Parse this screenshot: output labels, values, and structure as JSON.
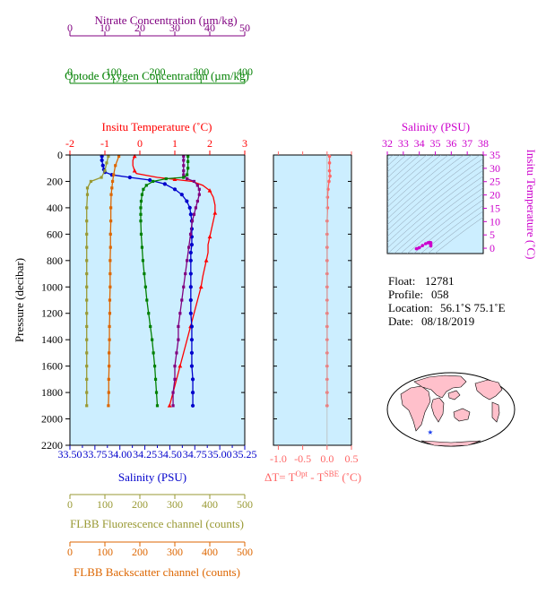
{
  "colors": {
    "nitrate": "#800080",
    "oxygen": "#008000",
    "temperature": "#ff0000",
    "salinity": "#0000cc",
    "fluorescence": "#999933",
    "backscatter": "#dd6600",
    "delta": "#ff6666",
    "magenta": "#cc00cc",
    "panel_bg": "#cceeff",
    "land": "#ffc0cb",
    "marker": "#2244ee"
  },
  "chart_data": [
    {
      "type": "line",
      "ylabel": "Pressure (decibar)",
      "ylim": [
        2200,
        0
      ],
      "yticks": [
        "0",
        "200",
        "400",
        "600",
        "800",
        "1000",
        "1200",
        "1400",
        "1600",
        "1800",
        "2000",
        "2200"
      ],
      "axes": {
        "nitrate": {
          "label": "Nitrate Concentration (µm/kg)",
          "range": [
            0,
            50
          ],
          "ticks": [
            "0",
            "10",
            "20",
            "30",
            "40",
            "50"
          ]
        },
        "oxygen": {
          "label": "Optode Oxygen Concentration (µm/kg)",
          "range": [
            0,
            400
          ],
          "ticks": [
            "0",
            "100",
            "200",
            "300",
            "400"
          ]
        },
        "temperature": {
          "label": "Insitu Temperature (˚C)",
          "range": [
            -2,
            3
          ],
          "ticks": [
            "-2",
            "-1",
            "0",
            "1",
            "2",
            "3"
          ]
        },
        "salinity": {
          "label": "Salinity (PSU)",
          "range": [
            33.5,
            35.25
          ],
          "ticks": [
            "33.50",
            "33.75",
            "34.00",
            "34.25",
            "34.50",
            "34.75",
            "35.00",
            "35.25"
          ]
        },
        "fluorescence": {
          "label": "FLBB Fluorescence channel (counts)",
          "range": [
            0,
            500
          ],
          "ticks": [
            "0",
            "100",
            "200",
            "300",
            "400",
            "500"
          ]
        },
        "backscatter": {
          "label": "FLBB Backscatter channel (counts)",
          "range": [
            0,
            500
          ],
          "ticks": [
            "0",
            "100",
            "200",
            "300",
            "400",
            "500"
          ]
        }
      },
      "series": [
        {
          "key": "temperature",
          "points": [
            [
              -0.15,
              10
            ],
            [
              -0.2,
              40
            ],
            [
              -0.2,
              80
            ],
            [
              -0.15,
              120
            ],
            [
              -0.1,
              140
            ],
            [
              0.5,
              170
            ],
            [
              1.0,
              185
            ],
            [
              1.5,
              200
            ],
            [
              1.8,
              230
            ],
            [
              2.0,
              270
            ],
            [
              2.1,
              320
            ],
            [
              2.15,
              380
            ],
            [
              2.15,
              440
            ],
            [
              2.1,
              500
            ],
            [
              2.05,
              560
            ],
            [
              2.0,
              620
            ],
            [
              1.95,
              680
            ],
            [
              1.95,
              740
            ],
            [
              1.9,
              800
            ],
            [
              1.85,
              860
            ],
            [
              1.8,
              920
            ],
            [
              1.75,
              1000
            ],
            [
              1.65,
              1100
            ],
            [
              1.55,
              1200
            ],
            [
              1.45,
              1300
            ],
            [
              1.35,
              1400
            ],
            [
              1.25,
              1500
            ],
            [
              1.15,
              1600
            ],
            [
              1.05,
              1700
            ],
            [
              0.95,
              1800
            ],
            [
              0.85,
              1900
            ]
          ]
        },
        {
          "key": "salinity",
          "points": [
            [
              33.82,
              10
            ],
            [
              33.82,
              40
            ],
            [
              33.83,
              80
            ],
            [
              33.84,
              110
            ],
            [
              33.85,
              130
            ],
            [
              33.92,
              150
            ],
            [
              34.1,
              170
            ],
            [
              34.3,
              190
            ],
            [
              34.45,
              220
            ],
            [
              34.55,
              260
            ],
            [
              34.62,
              300
            ],
            [
              34.67,
              350
            ],
            [
              34.7,
              400
            ],
            [
              34.71,
              450
            ],
            [
              34.72,
              500
            ],
            [
              34.72,
              560
            ],
            [
              34.72,
              620
            ],
            [
              34.72,
              680
            ],
            [
              34.71,
              740
            ],
            [
              34.71,
              800
            ],
            [
              34.71,
              900
            ],
            [
              34.71,
              1000
            ],
            [
              34.71,
              1100
            ],
            [
              34.71,
              1200
            ],
            [
              34.72,
              1300
            ],
            [
              34.72,
              1400
            ],
            [
              34.72,
              1500
            ],
            [
              34.72,
              1600
            ],
            [
              34.73,
              1700
            ],
            [
              34.73,
              1800
            ],
            [
              34.73,
              1900
            ]
          ]
        },
        {
          "key": "nitrate",
          "points": [
            [
              32.5,
              10
            ],
            [
              32.5,
              40
            ],
            [
              32.5,
              80
            ],
            [
              32.5,
              120
            ],
            [
              32.5,
              150
            ],
            [
              33.5,
              180
            ],
            [
              35.5,
              200
            ],
            [
              36.5,
              230
            ],
            [
              37,
              260
            ],
            [
              37,
              300
            ],
            [
              36.5,
              350
            ],
            [
              36,
              400
            ],
            [
              35.5,
              450
            ],
            [
              35,
              500
            ],
            [
              34.5,
              600
            ],
            [
              34,
              700
            ],
            [
              33.5,
              800
            ],
            [
              33,
              900
            ],
            [
              32.5,
              1000
            ],
            [
              32,
              1100
            ],
            [
              31.5,
              1200
            ],
            [
              31,
              1300
            ],
            [
              31,
              1400
            ],
            [
              30.5,
              1500
            ],
            [
              30,
              1600
            ],
            [
              30,
              1700
            ],
            [
              29.5,
              1800
            ],
            [
              29.5,
              1900
            ]
          ]
        },
        {
          "key": "oxygen",
          "points": [
            [
              270,
              10
            ],
            [
              270,
              50
            ],
            [
              270,
              100
            ],
            [
              268,
              150
            ],
            [
              260,
              170
            ],
            [
              220,
              180
            ],
            [
              190,
              200
            ],
            [
              175,
              230
            ],
            [
              168,
              260
            ],
            [
              165,
              300
            ],
            [
              163,
              350
            ],
            [
              162,
              400
            ],
            [
              162,
              450
            ],
            [
              162,
              500
            ],
            [
              163,
              600
            ],
            [
              165,
              700
            ],
            [
              167,
              800
            ],
            [
              170,
              900
            ],
            [
              173,
              1000
            ],
            [
              176,
              1100
            ],
            [
              180,
              1200
            ],
            [
              184,
              1300
            ],
            [
              188,
              1400
            ],
            [
              191,
              1500
            ],
            [
              194,
              1600
            ],
            [
              196,
              1700
            ],
            [
              198,
              1800
            ],
            [
              200,
              1900
            ]
          ]
        },
        {
          "key": "fluorescence",
          "points": [
            [
              110,
              10
            ],
            [
              105,
              60
            ],
            [
              100,
              120
            ],
            [
              90,
              170
            ],
            [
              60,
              200
            ],
            [
              50,
              250
            ],
            [
              50,
              300
            ],
            [
              48,
              400
            ],
            [
              48,
              500
            ],
            [
              48,
              600
            ],
            [
              48,
              700
            ],
            [
              48,
              800
            ],
            [
              48,
              900
            ],
            [
              48,
              1000
            ],
            [
              48,
              1100
            ],
            [
              48,
              1200
            ],
            [
              48,
              1300
            ],
            [
              48,
              1400
            ],
            [
              48,
              1500
            ],
            [
              48,
              1600
            ],
            [
              48,
              1700
            ],
            [
              48,
              1800
            ],
            [
              48,
              1900
            ]
          ]
        },
        {
          "key": "backscatter",
          "points": [
            [
              140,
              10
            ],
            [
              130,
              80
            ],
            [
              125,
              150
            ],
            [
              122,
              200
            ],
            [
              120,
              250
            ],
            [
              118,
              300
            ],
            [
              117,
              400
            ],
            [
              117,
              500
            ],
            [
              116,
              600
            ],
            [
              116,
              700
            ],
            [
              115,
              800
            ],
            [
              115,
              900
            ],
            [
              115,
              1000
            ],
            [
              114,
              1100
            ],
            [
              114,
              1200
            ],
            [
              113,
              1300
            ],
            [
              113,
              1400
            ],
            [
              112,
              1500
            ],
            [
              112,
              1600
            ],
            [
              111,
              1700
            ],
            [
              111,
              1800
            ],
            [
              110,
              1900
            ]
          ]
        }
      ]
    },
    {
      "type": "line",
      "xlabel": "ΔT= T",
      "xlabel_sup1": "Opt",
      "xlabel_mid": " - T",
      "xlabel_sup2": "SBE",
      "xlabel_tail": " (˚C)",
      "xlim": [
        -1.1,
        0.5
      ],
      "xticks": [
        "-1.0",
        "-0.5",
        "0.0",
        "0.5"
      ],
      "ylim": [
        2200,
        0
      ],
      "points": [
        [
          0.05,
          10
        ],
        [
          0.05,
          60
        ],
        [
          0.05,
          120
        ],
        [
          0.06,
          160
        ],
        [
          0.04,
          200
        ],
        [
          0.02,
          260
        ],
        [
          0.01,
          320
        ],
        [
          0.01,
          400
        ],
        [
          0.0,
          500
        ],
        [
          0.0,
          600
        ],
        [
          0.0,
          700
        ],
        [
          0.0,
          800
        ],
        [
          0.0,
          900
        ],
        [
          0.0,
          1000
        ],
        [
          0.0,
          1100
        ],
        [
          0.0,
          1200
        ],
        [
          0.0,
          1300
        ],
        [
          0.0,
          1400
        ],
        [
          0.0,
          1500
        ],
        [
          0.0,
          1600
        ],
        [
          0.0,
          1700
        ],
        [
          0.0,
          1800
        ],
        [
          0.0,
          1900
        ]
      ]
    },
    {
      "type": "scatter",
      "xlabel": "Salinity (PSU)",
      "ylabel": "Insitu Temperature (˚C)",
      "xlim": [
        32,
        38
      ],
      "ylim": [
        -2,
        35
      ],
      "xticks": [
        "32",
        "33",
        "34",
        "35",
        "36",
        "37",
        "38"
      ],
      "yticks": [
        "0",
        "5",
        "10",
        "15",
        "20",
        "25",
        "30",
        "35"
      ],
      "points": [
        [
          34.72,
          0.85
        ],
        [
          34.72,
          1.2
        ],
        [
          34.71,
          1.6
        ],
        [
          34.71,
          1.9
        ],
        [
          34.72,
          2.1
        ],
        [
          34.65,
          2.15
        ],
        [
          34.55,
          2.05
        ],
        [
          34.4,
          1.7
        ],
        [
          34.2,
          1.0
        ],
        [
          34.0,
          0.2
        ],
        [
          33.85,
          -0.15
        ],
        [
          33.82,
          -0.2
        ]
      ]
    }
  ],
  "info": {
    "float_label": "Float:",
    "float_value": "12781",
    "profile_label": "Profile:",
    "profile_value": "058",
    "location_label": "Location:",
    "location_value": "56.1˚S  75.1˚E",
    "date_label": "Date:",
    "date_value": "08/18/2019"
  },
  "map": {
    "marker_lat": -56.1,
    "marker_lon": 75.1
  }
}
